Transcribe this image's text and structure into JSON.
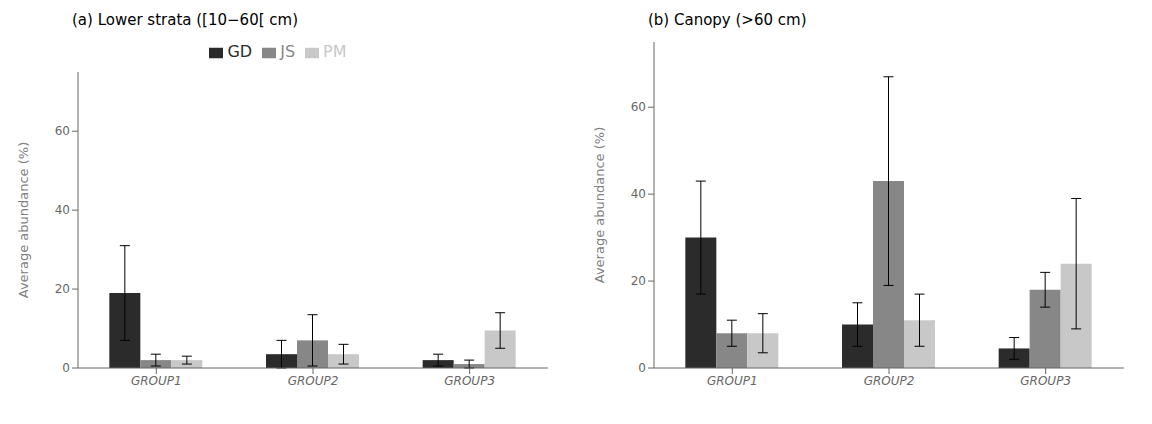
{
  "chart_data": [
    {
      "type": "bar",
      "title": "(a) Lower strata ([10−60[ cm)",
      "ylabel": "Average abundance (%)",
      "categories": [
        "GROUP1",
        "GROUP2",
        "GROUP3"
      ],
      "series": [
        {
          "name": "GD",
          "color": "#2b2b2b",
          "values": [
            19.0,
            3.5,
            2.0
          ],
          "errors": [
            12.0,
            3.5,
            1.5
          ]
        },
        {
          "name": "JS",
          "color": "#878787",
          "values": [
            2.0,
            7.0,
            1.0
          ],
          "errors": [
            1.5,
            6.5,
            1.0
          ]
        },
        {
          "name": "PM",
          "color": "#c8c8c8",
          "values": [
            2.0,
            3.5,
            9.5
          ],
          "errors": [
            1.0,
            2.5,
            4.5
          ]
        }
      ],
      "ylim": [
        0,
        75
      ],
      "yticks": [
        0,
        20,
        40,
        60
      ],
      "legend": "top"
    },
    {
      "type": "bar",
      "title": "(b) Canopy (>60 cm)",
      "ylabel": "Average abundance (%)",
      "categories": [
        "GROUP1",
        "GROUP2",
        "GROUP3"
      ],
      "series": [
        {
          "name": "GD",
          "color": "#2b2b2b",
          "values": [
            30.0,
            10.0,
            4.5
          ],
          "errors": [
            13.0,
            5.0,
            2.5
          ]
        },
        {
          "name": "JS",
          "color": "#878787",
          "values": [
            8.0,
            43.0,
            18.0
          ],
          "errors": [
            3.0,
            24.0,
            4.0
          ]
        },
        {
          "name": "PM",
          "color": "#c8c8c8",
          "values": [
            8.0,
            11.0,
            24.0
          ],
          "errors": [
            4.5,
            6.0,
            15.0
          ]
        }
      ],
      "ylim": [
        0,
        75
      ],
      "yticks": [
        0,
        20,
        40,
        60
      ]
    }
  ]
}
